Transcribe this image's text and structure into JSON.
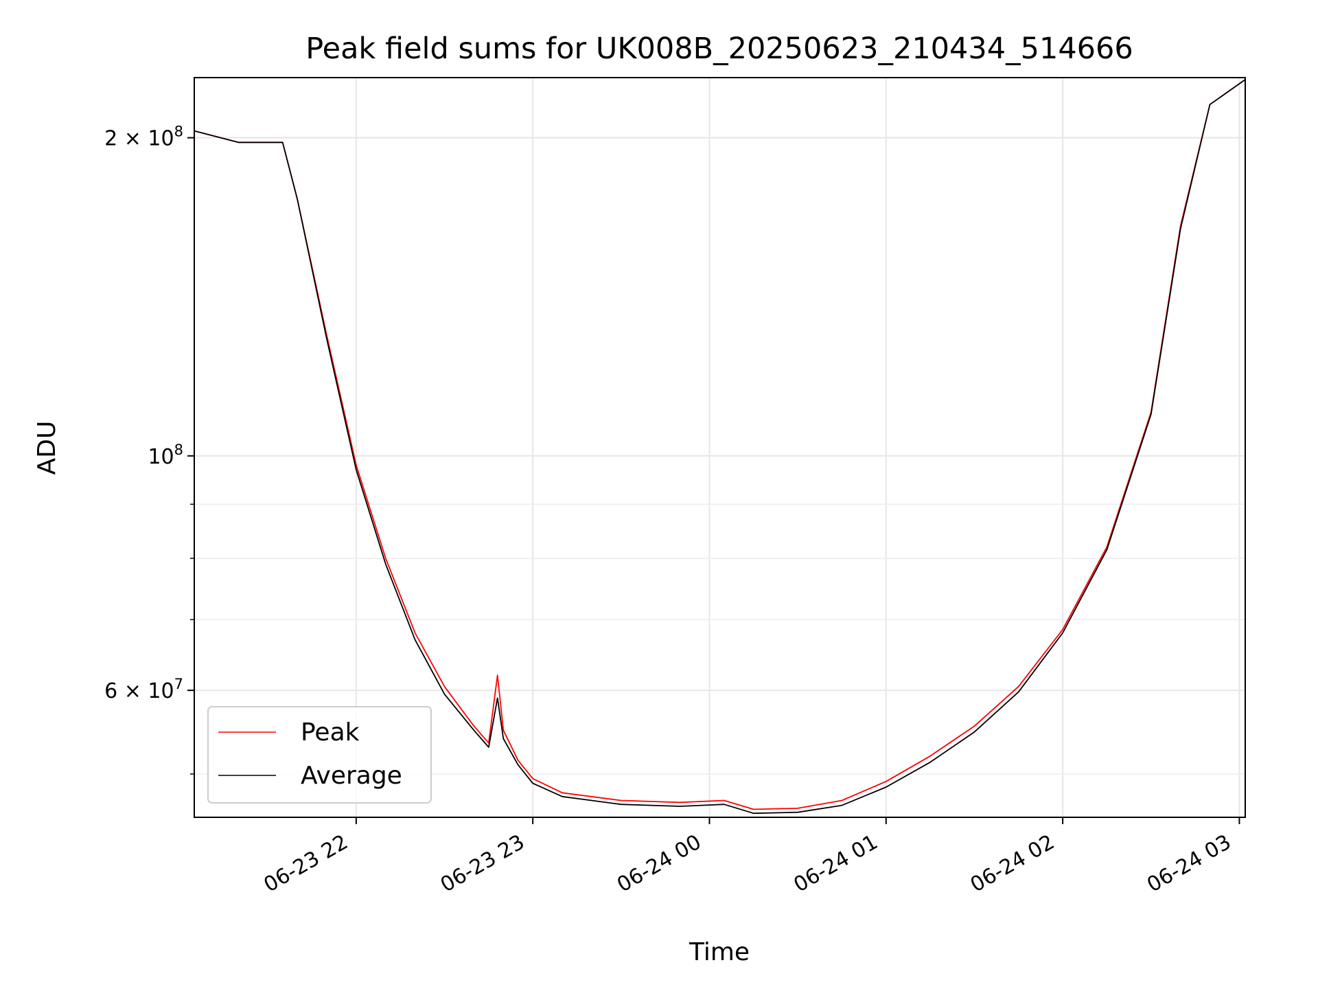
{
  "chart_data": {
    "type": "line",
    "title": "Peak field sums for UK008B_20250623_210434_514666",
    "xlabel": "Time",
    "ylabel": "ADU",
    "yscale": "log",
    "grid": true,
    "legend_position": "lower-left",
    "xlim": [
      "2025-06-23 21:05",
      "2025-06-24 03:02"
    ],
    "ylim": [
      45500000,
      228000000
    ],
    "x_ticks": [
      {
        "value": "2025-06-23 22:00",
        "label": "06-23 22"
      },
      {
        "value": "2025-06-23 23:00",
        "label": "06-23 23"
      },
      {
        "value": "2025-06-24 00:00",
        "label": "06-24 00"
      },
      {
        "value": "2025-06-24 01:00",
        "label": "06-24 01"
      },
      {
        "value": "2025-06-24 02:00",
        "label": "06-24 02"
      },
      {
        "value": "2025-06-24 03:00",
        "label": "06-24 03"
      }
    ],
    "y_major_ticks": [
      {
        "value": 200000000,
        "mantissa": "2",
        "times": "×",
        "base": "10",
        "exp": "8"
      },
      {
        "value": 100000000,
        "mantissa": "",
        "times": "",
        "base": "10",
        "exp": "8"
      },
      {
        "value": 60000000,
        "mantissa": "6",
        "times": "×",
        "base": "10",
        "exp": "7"
      }
    ],
    "y_minor_ticks": [
      50000000,
      70000000,
      80000000,
      90000000
    ],
    "series": [
      {
        "name": "Peak",
        "color": "#ff0000",
        "x": [
          "2025-06-23 21:05",
          "2025-06-23 21:20",
          "2025-06-23 21:35",
          "2025-06-23 21:40",
          "2025-06-23 21:50",
          "2025-06-23 22:00",
          "2025-06-23 22:10",
          "2025-06-23 22:20",
          "2025-06-23 22:30",
          "2025-06-23 22:40",
          "2025-06-23 22:45",
          "2025-06-23 22:48",
          "2025-06-23 22:50",
          "2025-06-23 22:55",
          "2025-06-23 23:00",
          "2025-06-23 23:10",
          "2025-06-23 23:30",
          "2025-06-23 23:50",
          "2025-06-24 00:05",
          "2025-06-24 00:15",
          "2025-06-24 00:30",
          "2025-06-24 00:45",
          "2025-06-24 01:00",
          "2025-06-24 01:15",
          "2025-06-24 01:30",
          "2025-06-24 01:45",
          "2025-06-24 02:00",
          "2025-06-24 02:15",
          "2025-06-24 02:30",
          "2025-06-24 02:40",
          "2025-06-24 02:50",
          "2025-06-24 03:02"
        ],
        "values": [
          203000000,
          198000000,
          198000000,
          175000000,
          130000000,
          98000000,
          80000000,
          68000000,
          60500000,
          55500000,
          53500000,
          62000000,
          55000000,
          51500000,
          49500000,
          48000000,
          47200000,
          47000000,
          47200000,
          46300000,
          46400000,
          47200000,
          49200000,
          52000000,
          55500000,
          60500000,
          68500000,
          82000000,
          110000000,
          165000000,
          215000000,
          227000000
        ]
      },
      {
        "name": "Average",
        "color": "#000000",
        "x": [
          "2025-06-23 21:05",
          "2025-06-23 21:20",
          "2025-06-23 21:35",
          "2025-06-23 21:40",
          "2025-06-23 21:50",
          "2025-06-23 22:00",
          "2025-06-23 22:10",
          "2025-06-23 22:20",
          "2025-06-23 22:30",
          "2025-06-23 22:40",
          "2025-06-23 22:45",
          "2025-06-23 22:48",
          "2025-06-23 22:50",
          "2025-06-23 22:55",
          "2025-06-23 23:00",
          "2025-06-23 23:10",
          "2025-06-23 23:30",
          "2025-06-23 23:50",
          "2025-06-24 00:05",
          "2025-06-24 00:15",
          "2025-06-24 00:30",
          "2025-06-24 00:45",
          "2025-06-24 01:00",
          "2025-06-24 01:15",
          "2025-06-24 01:30",
          "2025-06-24 01:45",
          "2025-06-24 02:00",
          "2025-06-24 02:15",
          "2025-06-24 02:30",
          "2025-06-24 02:40",
          "2025-06-24 02:50",
          "2025-06-24 03:02"
        ],
        "values": [
          203000000,
          198000000,
          198000000,
          175000000,
          129000000,
          97000000,
          79000000,
          67000000,
          59500000,
          55000000,
          53000000,
          59000000,
          54000000,
          51000000,
          49000000,
          47600000,
          46800000,
          46600000,
          46800000,
          45900000,
          46000000,
          46700000,
          48600000,
          51300000,
          54800000,
          59800000,
          68000000,
          81500000,
          109500000,
          164000000,
          215000000,
          227000000
        ]
      }
    ]
  }
}
